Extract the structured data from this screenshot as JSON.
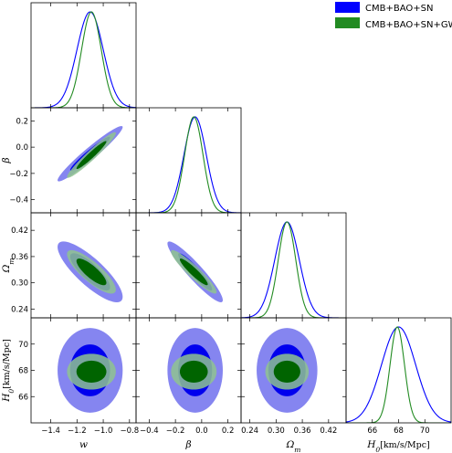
{
  "chart_data": {
    "type": "triangle-corner",
    "parameters": [
      "w",
      "β",
      "Ω",
      "H"
    ],
    "parameter_subscripts": [
      "",
      "",
      "m",
      "0"
    ],
    "parameter_units": [
      "",
      "",
      "",
      "[km/s/Mpc]"
    ],
    "ranges": [
      [
        -1.55,
        -0.75
      ],
      [
        -0.5,
        0.3
      ],
      [
        0.22,
        0.46
      ],
      [
        64,
        72
      ]
    ],
    "ticks": [
      {
        "values": [
          -1.4,
          -1.2,
          -1.0,
          -0.8
        ],
        "labels": [
          "−1.4",
          "−1.2",
          "−1.0",
          "−0.8"
        ]
      },
      {
        "values": [
          -0.4,
          -0.2,
          0.0,
          0.2
        ],
        "labels": [
          "−0.4",
          "−0.2",
          "0.0",
          "0.2"
        ]
      },
      {
        "values": [
          0.24,
          0.3,
          0.36,
          0.42
        ],
        "labels": [
          "0.24",
          "0.30",
          "0.36",
          "0.42"
        ]
      },
      {
        "values": [
          66,
          68,
          70
        ],
        "labels": [
          "66",
          "68",
          "70"
        ]
      }
    ],
    "series": [
      {
        "name": "CMB+BAO+SN",
        "color": "#0000ff",
        "fill_1sigma": "#0000ee",
        "fill_2sigma": "#8585f0",
        "mean": [
          -1.1,
          -0.05,
          0.325,
          68.0
        ],
        "sigma": [
          0.1,
          0.085,
          0.028,
          1.3
        ],
        "correlation": {
          "0-1": 0.96,
          "0-2": -0.82,
          "1-2": -0.93,
          "0-3": 0.0,
          "1-3": 0.0,
          "2-3": 0.0
        }
      },
      {
        "name": "CMB+BAO+SN+GW",
        "color": "#228b22",
        "fill_1sigma": "#006400",
        "fill_2sigma": "#8fc38f",
        "mean": [
          -1.09,
          -0.06,
          0.325,
          67.9
        ],
        "sigma": [
          0.075,
          0.07,
          0.02,
          0.55
        ],
        "correlation": {
          "0-1": 0.96,
          "0-2": -0.82,
          "1-2": -0.93,
          "0-3": 0.0,
          "1-3": 0.0,
          "2-3": 0.0
        }
      }
    ]
  }
}
